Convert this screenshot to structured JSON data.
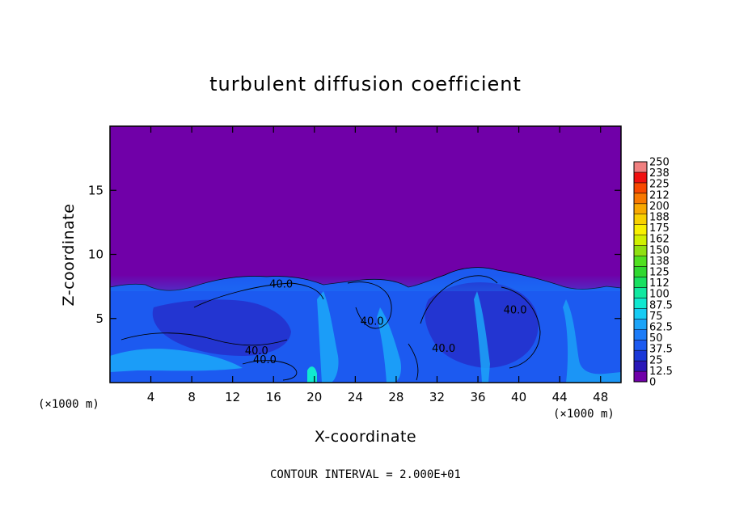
{
  "chart_data": {
    "type": "heatmap",
    "title": "turbulent diffusion coefficient",
    "xlabel": "X-coordinate",
    "ylabel": "Z-coordinate",
    "x_unit": "(×1000 m)",
    "x_unit_right": "(×1000 m)",
    "xlim": [
      0,
      50
    ],
    "ylim": [
      0,
      20
    ],
    "x_ticks": [
      4,
      8,
      12,
      16,
      20,
      24,
      28,
      32,
      36,
      40,
      44,
      48
    ],
    "y_ticks": [
      5,
      10,
      15
    ],
    "colorbar": {
      "levels": [
        "0",
        "12.5",
        "25",
        "37.5",
        "50",
        "62.5",
        "75",
        "87.5",
        "100",
        "112",
        "125",
        "138",
        "150",
        "162",
        "175",
        "188",
        "200",
        "212",
        "225",
        "238",
        "250"
      ],
      "colors": [
        "#7000a8",
        "#2a18b8",
        "#1a38d8",
        "#1c5af0",
        "#1c7cf8",
        "#1ca4f8",
        "#16ccf4",
        "#10e8d0",
        "#10e8a0",
        "#18e060",
        "#30d830",
        "#50e020",
        "#90e010",
        "#d0f000",
        "#f8f000",
        "#f8d000",
        "#f8a800",
        "#f87800",
        "#f84800",
        "#f01010",
        "#f08080"
      ]
    },
    "background_value": 0,
    "contour_level": 40,
    "contour_labels": [
      {
        "text": "40.0",
        "x": 15.6,
        "y": 7.4
      },
      {
        "text": "40.0",
        "x": 13.2,
        "y": 2.2
      },
      {
        "text": "40.0",
        "x": 14.0,
        "y": 1.5
      },
      {
        "text": "40.0",
        "x": 24.5,
        "y": 4.5
      },
      {
        "text": "40.0",
        "x": 31.5,
        "y": 2.4
      },
      {
        "text": "40.0",
        "x": 38.5,
        "y": 5.4
      }
    ],
    "annotation": "CONTOUR INTERVAL = 2.000E+01"
  }
}
